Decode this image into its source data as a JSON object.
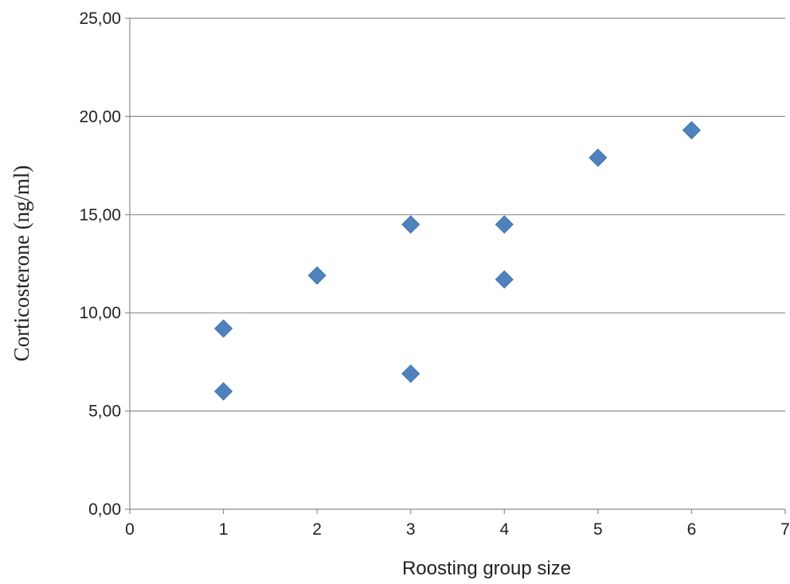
{
  "chart_data": {
    "type": "scatter",
    "title": "",
    "xlabel": "Roosting group size",
    "ylabel": "Corticosterone (ng/ml)",
    "xlim": [
      0,
      7
    ],
    "ylim": [
      0,
      25
    ],
    "x_ticks": [
      0,
      1,
      2,
      3,
      4,
      5,
      6,
      7
    ],
    "x_tick_labels": [
      "0",
      "1",
      "2",
      "3",
      "4",
      "5",
      "6",
      "7"
    ],
    "y_ticks": [
      0,
      5,
      10,
      15,
      20,
      25
    ],
    "y_tick_labels": [
      "0,00",
      "5,00",
      "10,00",
      "15,00",
      "20,00",
      "25,00"
    ],
    "grid": "horizontal",
    "legend": "none",
    "marker": "diamond",
    "series": [
      {
        "color": "#4f81bd",
        "points": [
          {
            "x": 1,
            "y": 9.2
          },
          {
            "x": 1,
            "y": 6.0
          },
          {
            "x": 2,
            "y": 11.9
          },
          {
            "x": 3,
            "y": 14.5
          },
          {
            "x": 3,
            "y": 6.9
          },
          {
            "x": 4,
            "y": 14.5
          },
          {
            "x": 4,
            "y": 11.7
          },
          {
            "x": 5,
            "y": 17.9
          },
          {
            "x": 6,
            "y": 19.3
          }
        ]
      }
    ]
  }
}
